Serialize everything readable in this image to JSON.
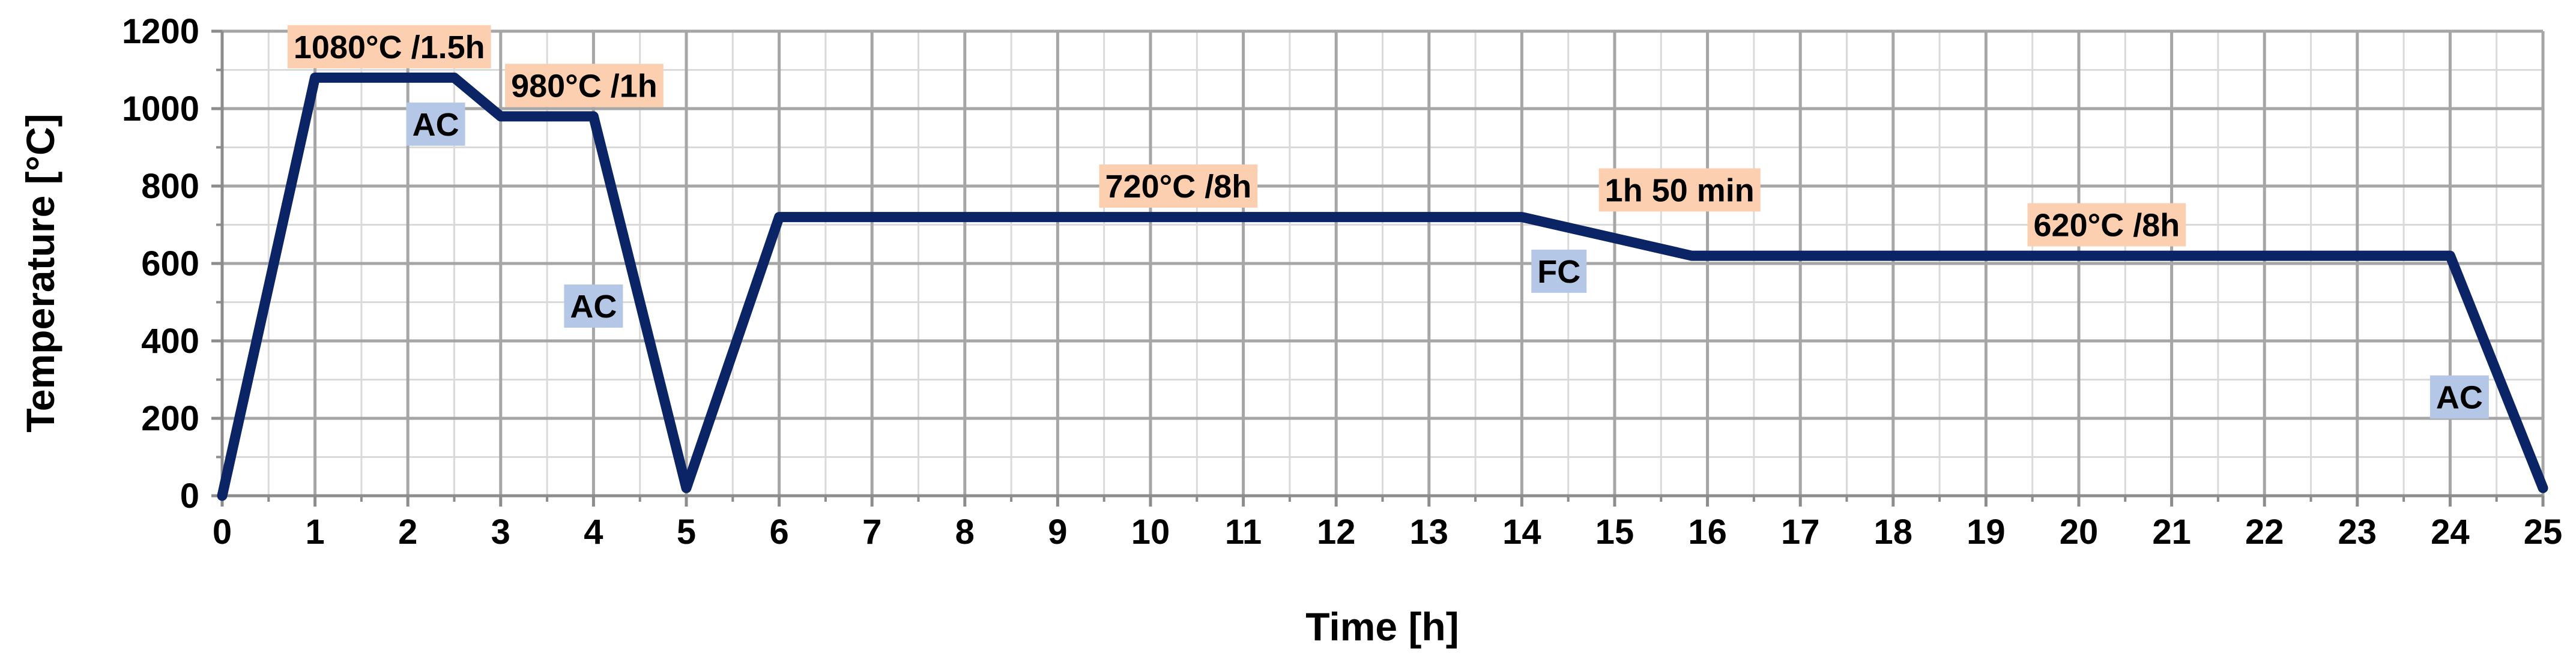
{
  "chart_data": {
    "type": "line",
    "xlabel": "Time [h]",
    "ylabel": "Temperature [°C]",
    "xlim": [
      0,
      25
    ],
    "ylim": [
      0,
      1200
    ],
    "x_ticks": [
      0,
      1,
      2,
      3,
      4,
      5,
      6,
      7,
      8,
      9,
      10,
      11,
      12,
      13,
      14,
      15,
      16,
      17,
      18,
      19,
      20,
      21,
      22,
      23,
      24,
      25
    ],
    "y_ticks": [
      0,
      200,
      400,
      600,
      800,
      1000,
      1200
    ],
    "x_minor_step": 0.5,
    "y_minor_step": 100,
    "grid": true,
    "legend": "none",
    "series": [
      {
        "color": "#0b2466",
        "x": [
          0,
          1,
          2.5,
          3,
          4,
          5,
          6,
          14,
          15.83,
          24,
          25
        ],
        "y": [
          0,
          1080,
          1080,
          980,
          980,
          20,
          720,
          720,
          620,
          620,
          20
        ]
      }
    ],
    "annotations": [
      {
        "text": "1080°C /1.5h",
        "kind": "hold",
        "x": 1.8,
        "y": 1160
      },
      {
        "text": "980°C /1h",
        "kind": "hold",
        "x": 3.9,
        "y": 1060
      },
      {
        "text": "AC",
        "kind": "cooling",
        "x": 2.3,
        "y": 960
      },
      {
        "text": "AC",
        "kind": "cooling",
        "x": 4.0,
        "y": 490
      },
      {
        "text": "720°C /8h",
        "kind": "hold",
        "x": 10.3,
        "y": 800
      },
      {
        "text": "1h 50 min",
        "kind": "hold",
        "x": 15.7,
        "y": 790
      },
      {
        "text": "FC",
        "kind": "cooling",
        "x": 14.4,
        "y": 580
      },
      {
        "text": "620°C /8h",
        "kind": "hold",
        "x": 20.3,
        "y": 700
      },
      {
        "text": "AC",
        "kind": "cooling",
        "x": 24.1,
        "y": 255
      }
    ],
    "annotation_colors": {
      "hold": "#fbcfb0",
      "cooling": "#b4c7e7"
    }
  }
}
